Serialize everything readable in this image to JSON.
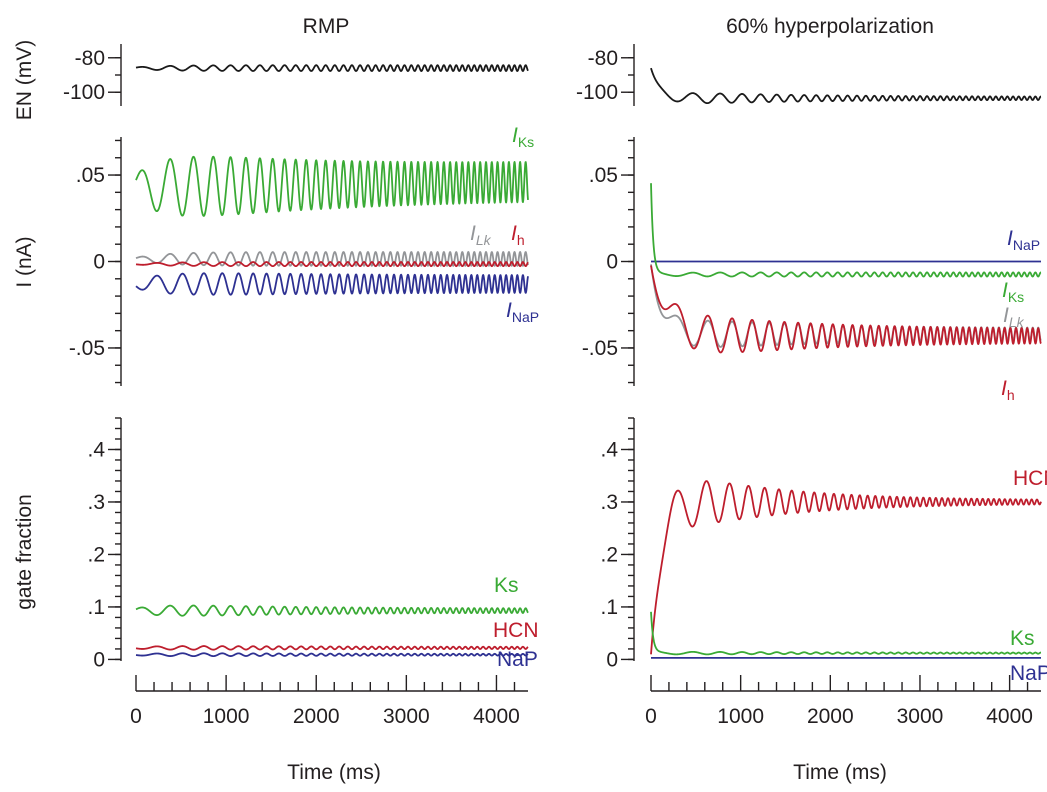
{
  "colors": {
    "black": "#1a1a1a",
    "green": "#3aaa35",
    "gray": "#939598",
    "red": "#be1e2d",
    "blue": "#2e3192",
    "text": "#231f20"
  },
  "titles": {
    "left": "RMP",
    "right": "60% hyperpolarization"
  },
  "ylabels": {
    "en": "EN (mV)",
    "i": "I (nA)",
    "gate": "gate fraction"
  },
  "xlabel": "Time (ms)",
  "chart_data": [
    {
      "type": "line",
      "id": "en-rmp",
      "column": "RMP",
      "row": "EN",
      "ylabel": "EN (mV)",
      "ylim": [
        -108,
        -72
      ],
      "xlim": [
        0,
        4350
      ],
      "yticks": [
        -80,
        -100
      ],
      "ytick_labels": [
        "-80",
        "-100"
      ],
      "series": [
        {
          "color": "black",
          "model": {
            "base": -86,
            "amp": 1.7,
            "decay": 0,
            "start": 0,
            "per0": 380,
            "per1": 55,
            "tau": 1100,
            "phase": 0.6,
            "a0": 0.3,
            "env": 1,
            "ramp": 350
          }
        }
      ]
    },
    {
      "type": "line",
      "id": "i-rmp",
      "column": "RMP",
      "row": "I",
      "ylabel": "I (nA)",
      "ylim": [
        -0.072,
        0.072
      ],
      "xlim": [
        0,
        4350
      ],
      "yticks": [
        0.05,
        0,
        -0.05
      ],
      "ytick_labels": [
        ".05",
        "0",
        "-.05"
      ],
      "series": [
        {
          "name": "I",
          "sub": "Ks",
          "color": "green",
          "model": {
            "base": 0.043,
            "amp": 0.024,
            "decay": 0,
            "start": 0,
            "per0": 380,
            "per1": 55,
            "tau": 1100,
            "phase": 0.6,
            "a0": 0.3,
            "env": 1,
            "ramp": 350,
            "amp_end": 0.011,
            "base_end": 0.046
          }
        },
        {
          "name": "I",
          "sub": "Lk",
          "color": "gray",
          "model": {
            "base": 0.0015,
            "amp": 0.004,
            "decay": 0,
            "start": 0,
            "per0": 380,
            "per1": 55,
            "tau": 1100,
            "phase": 0.6,
            "a0": 0.2,
            "env": 1,
            "ramp": 350
          }
        },
        {
          "name": "I",
          "sub": "h",
          "color": "red",
          "model": {
            "base": -0.0015,
            "amp": 0.0012,
            "decay": 0,
            "start": 0,
            "per0": 380,
            "per1": 55,
            "tau": 1100,
            "phase": 3.7,
            "a0": 0.2,
            "env": 1,
            "ramp": 350
          }
        },
        {
          "name": "I",
          "sub": "NaP",
          "color": "blue",
          "model": {
            "base": -0.013,
            "amp": 0.008,
            "decay": 0,
            "start": 0,
            "per0": 380,
            "per1": 55,
            "tau": 1100,
            "phase": 3.7,
            "a0": 0.3,
            "env": 1,
            "ramp": 350,
            "amp_end": 0.005
          }
        }
      ]
    },
    {
      "type": "line",
      "id": "gate-rmp",
      "column": "RMP",
      "row": "gate",
      "ylabel": "gate fraction",
      "ylim": [
        -0.003,
        0.46
      ],
      "xlim": [
        0,
        4350
      ],
      "yticks": [
        0.4,
        0.3,
        0.2,
        0.1,
        0
      ],
      "ytick_labels": [
        ".4",
        ".3",
        ".2",
        ".1",
        "0"
      ],
      "series": [
        {
          "name": "Ks",
          "color": "green",
          "model": {
            "base": 0.093,
            "amp": 0.015,
            "decay": 0,
            "start": 0,
            "per0": 380,
            "per1": 55,
            "tau": 1100,
            "phase": 0.6,
            "a0": 0.3,
            "env": 1,
            "ramp": 350,
            "amp_end": 0.004
          }
        },
        {
          "name": "HCN",
          "color": "red",
          "model": {
            "base": 0.022,
            "amp": 0.005,
            "decay": 0,
            "start": 0,
            "per0": 380,
            "per1": 55,
            "tau": 1100,
            "phase": 3.7,
            "a0": 0.3,
            "env": 1,
            "ramp": 350,
            "amp_end": 0.002
          }
        },
        {
          "name": "NaP",
          "color": "blue",
          "model": {
            "base": 0.009,
            "amp": 0.004,
            "decay": 0,
            "start": 0,
            "per0": 380,
            "per1": 55,
            "tau": 1100,
            "phase": 3.7,
            "a0": 0.3,
            "env": 1,
            "ramp": 350,
            "amp_end": 0.0015
          }
        }
      ],
      "xticks": [
        0,
        1000,
        2000,
        3000,
        4000
      ],
      "xtick_labels": [
        "0",
        "1000",
        "2000",
        "3000",
        "4000"
      ],
      "xlabel": "Time (ms)"
    },
    {
      "type": "line",
      "id": "en-hyp",
      "column": "60% hyperpolarization",
      "row": "EN",
      "ylabel": "EN (mV)",
      "ylim": [
        -108,
        -72
      ],
      "xlim": [
        0,
        4350
      ],
      "yticks": [
        -80,
        -100
      ],
      "ytick_labels": [
        "-80",
        "-100"
      ],
      "series": [
        {
          "color": "black",
          "model": {
            "base": -103.5,
            "start": -86,
            "settle": 90,
            "amp": 4.5,
            "per0": 520,
            "per1": 55,
            "tau": 1000,
            "phase": 0.9,
            "a0": 0.0,
            "env": 1,
            "ramp": 250,
            "amp_end": 0.9
          }
        }
      ]
    },
    {
      "type": "line",
      "id": "i-hyp",
      "column": "60% hyperpolarization",
      "row": "I",
      "ylabel": "I (nA)",
      "ylim": [
        -0.072,
        0.072
      ],
      "xlim": [
        0,
        4350
      ],
      "yticks": [
        0.05,
        0,
        -0.05
      ],
      "ytick_labels": [
        ".05",
        "0",
        "-.05"
      ],
      "series": [
        {
          "name": "I",
          "sub": "NaP",
          "color": "blue",
          "model": {
            "base": 0.0,
            "amp": 0.0,
            "per0": 500,
            "per1": 55,
            "tau": 1000,
            "phase": 0,
            "a0": 0,
            "env": 0,
            "ramp": 1
          }
        },
        {
          "name": "I",
          "sub": "Ks",
          "color": "green",
          "model": {
            "base": -0.0075,
            "start": 0.045,
            "settle": 25,
            "amp": 0.0012,
            "per0": 520,
            "per1": 55,
            "tau": 1000,
            "phase": 0.9,
            "a0": 0.3,
            "env": 1,
            "ramp": 250
          }
        },
        {
          "name": "I",
          "sub": "Lk",
          "color": "gray",
          "model": {
            "base": -0.042,
            "start": 0.0,
            "settle": 120,
            "amp": 0.012,
            "per0": 520,
            "per1": 55,
            "tau": 1000,
            "phase": 3.9,
            "a0": 0.2,
            "env": 1,
            "ramp": 350,
            "amp_end": 0.0035
          }
        },
        {
          "name": "I",
          "sub": "h",
          "color": "red",
          "model": {
            "base": -0.043,
            "start": 0.0,
            "settle": 180,
            "amp": 0.017,
            "per0": 520,
            "per1": 55,
            "tau": 1000,
            "phase": 3.9,
            "a0": 0.2,
            "env": 1,
            "ramp": 350,
            "amp_end": 0.004
          }
        }
      ]
    },
    {
      "type": "line",
      "id": "gate-hyp",
      "column": "60% hyperpolarization",
      "row": "gate",
      "ylabel": "gate fraction",
      "ylim": [
        -0.003,
        0.46
      ],
      "xlim": [
        0,
        4350
      ],
      "yticks": [
        0.4,
        0.3,
        0.2,
        0.1,
        0
      ],
      "ytick_labels": [
        ".4",
        ".3",
        ".2",
        ".1",
        "0"
      ],
      "series": [
        {
          "name": "HCN",
          "color": "red",
          "model": {
            "base": 0.3,
            "start": 0.02,
            "settle": 110,
            "amp": 0.075,
            "per0": 520,
            "per1": 55,
            "tau": 900,
            "phase": 3.9,
            "a0": 0.2,
            "env": 1,
            "ramp": 300,
            "amp_end": 0.003
          }
        },
        {
          "name": "Ks",
          "color": "green",
          "model": {
            "base": 0.012,
            "start": 0.09,
            "settle": 25,
            "amp": 0.0035,
            "per0": 520,
            "per1": 55,
            "tau": 1000,
            "phase": 0.9,
            "a0": 0.3,
            "env": 1,
            "ramp": 250,
            "amp_end": 0.001
          }
        },
        {
          "name": "NaP",
          "color": "blue",
          "model": {
            "base": 0.003,
            "amp": 0.0,
            "per0": 500,
            "per1": 55,
            "tau": 1000,
            "phase": 0,
            "a0": 0,
            "env": 0,
            "ramp": 1
          }
        }
      ],
      "xticks": [
        0,
        1000,
        2000,
        3000,
        4000
      ],
      "xtick_labels": [
        "0",
        "1000",
        "2000",
        "3000",
        "4000"
      ],
      "xlabel": "Time (ms)"
    }
  ]
}
